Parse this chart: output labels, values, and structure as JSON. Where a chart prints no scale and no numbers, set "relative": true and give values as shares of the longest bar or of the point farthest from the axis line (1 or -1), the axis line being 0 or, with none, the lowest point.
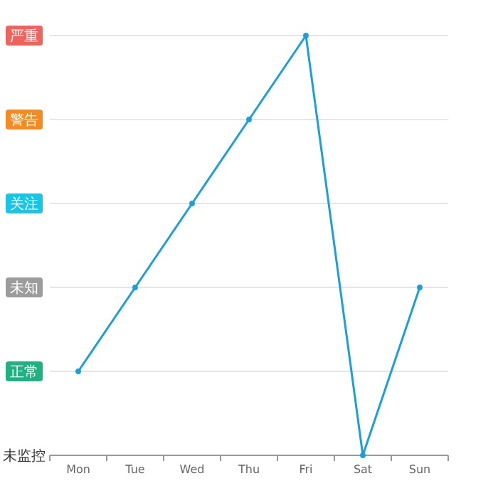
{
  "chart_data": {
    "type": "line",
    "relative": true,
    "categories": [
      "Mon",
      "Tue",
      "Wed",
      "Thu",
      "Fri",
      "Sat",
      "Sun"
    ],
    "series": [
      {
        "color": "#1a9fdc",
        "values": [
          0.2,
          0.4,
          0.6,
          0.8,
          1,
          0,
          0.4
        ]
      }
    ],
    "annotations": [
      "未监控",
      "正常",
      "未知",
      "关注",
      "警告",
      "严重"
    ],
    "grid": "y",
    "marker": "circle",
    "line_style": "solid"
  }
}
